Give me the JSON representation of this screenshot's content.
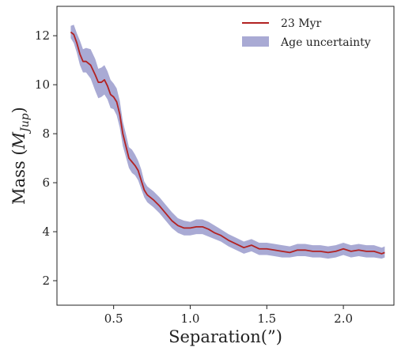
{
  "chart_data": {
    "type": "line",
    "xlabel": "Separation(”)",
    "ylabel_main": "Mass (",
    "ylabel_italic": "M",
    "ylabel_sub": "Jup",
    "ylabel_close": ")",
    "xlim": [
      0.13,
      2.33
    ],
    "ylim": [
      1.0,
      13.2
    ],
    "xticks": [
      0.5,
      1.0,
      1.5,
      2.0
    ],
    "xtick_labels": [
      "0.5",
      "1.0",
      "1.5",
      "2.0"
    ],
    "yticks": [
      2,
      4,
      6,
      8,
      10,
      12
    ],
    "ytick_labels": [
      "2",
      "4",
      "6",
      "8",
      "10",
      "12"
    ],
    "grid": false,
    "legend_position": "top-right",
    "legend": {
      "line_label": "23 Myr",
      "band_label": "Age uncertainty"
    },
    "colors": {
      "line": "#b22222",
      "band": "#9a9bcc"
    },
    "series": [
      {
        "name": "23 Myr",
        "x": [
          0.22,
          0.24,
          0.26,
          0.28,
          0.3,
          0.32,
          0.35,
          0.38,
          0.4,
          0.42,
          0.44,
          0.46,
          0.48,
          0.5,
          0.52,
          0.54,
          0.56,
          0.58,
          0.6,
          0.62,
          0.64,
          0.66,
          0.68,
          0.7,
          0.72,
          0.74,
          0.76,
          0.8,
          0.84,
          0.88,
          0.92,
          0.96,
          1.0,
          1.04,
          1.08,
          1.12,
          1.16,
          1.2,
          1.25,
          1.3,
          1.35,
          1.4,
          1.45,
          1.5,
          1.55,
          1.6,
          1.65,
          1.7,
          1.75,
          1.8,
          1.85,
          1.9,
          1.95,
          2.0,
          2.05,
          2.1,
          2.15,
          2.2,
          2.25,
          2.27
        ],
        "y": [
          12.15,
          12.05,
          11.7,
          11.25,
          10.95,
          10.95,
          10.8,
          10.4,
          10.1,
          10.1,
          10.2,
          9.95,
          9.6,
          9.5,
          9.3,
          8.8,
          8.0,
          7.5,
          7.0,
          6.85,
          6.7,
          6.5,
          6.1,
          5.7,
          5.5,
          5.4,
          5.3,
          5.05,
          4.75,
          4.45,
          4.25,
          4.15,
          4.15,
          4.2,
          4.2,
          4.1,
          3.95,
          3.85,
          3.65,
          3.5,
          3.35,
          3.45,
          3.3,
          3.3,
          3.25,
          3.2,
          3.15,
          3.25,
          3.25,
          3.2,
          3.2,
          3.15,
          3.2,
          3.3,
          3.2,
          3.25,
          3.2,
          3.2,
          3.1,
          3.15
        ]
      },
      {
        "name": "Age uncertainty",
        "x": [
          0.22,
          0.24,
          0.26,
          0.28,
          0.3,
          0.32,
          0.35,
          0.38,
          0.4,
          0.42,
          0.44,
          0.46,
          0.48,
          0.5,
          0.52,
          0.54,
          0.56,
          0.58,
          0.6,
          0.62,
          0.64,
          0.66,
          0.68,
          0.7,
          0.72,
          0.74,
          0.76,
          0.8,
          0.84,
          0.88,
          0.92,
          0.96,
          1.0,
          1.04,
          1.08,
          1.12,
          1.16,
          1.2,
          1.25,
          1.3,
          1.35,
          1.4,
          1.45,
          1.5,
          1.55,
          1.6,
          1.65,
          1.7,
          1.75,
          1.8,
          1.85,
          1.9,
          1.95,
          2.0,
          2.05,
          2.1,
          2.15,
          2.2,
          2.25,
          2.27
        ],
        "lower": [
          11.9,
          11.7,
          11.3,
          10.8,
          10.5,
          10.5,
          10.25,
          9.75,
          9.45,
          9.5,
          9.6,
          9.4,
          9.05,
          9.0,
          8.75,
          8.25,
          7.5,
          7.05,
          6.6,
          6.4,
          6.3,
          6.1,
          5.75,
          5.4,
          5.2,
          5.1,
          5.0,
          4.75,
          4.45,
          4.15,
          3.95,
          3.85,
          3.85,
          3.9,
          3.9,
          3.8,
          3.7,
          3.6,
          3.4,
          3.25,
          3.1,
          3.2,
          3.05,
          3.05,
          3.0,
          2.95,
          2.95,
          3.0,
          3.0,
          2.95,
          2.95,
          2.9,
          2.95,
          3.05,
          2.95,
          3.0,
          2.95,
          2.95,
          2.9,
          2.95
        ],
        "upper": [
          12.4,
          12.45,
          12.1,
          11.8,
          11.45,
          11.5,
          11.45,
          11.05,
          10.65,
          10.7,
          10.8,
          10.55,
          10.2,
          10.05,
          9.85,
          9.35,
          8.5,
          8.0,
          7.45,
          7.35,
          7.15,
          6.9,
          6.55,
          6.05,
          5.85,
          5.75,
          5.65,
          5.4,
          5.1,
          4.8,
          4.55,
          4.45,
          4.4,
          4.5,
          4.5,
          4.4,
          4.25,
          4.1,
          3.9,
          3.75,
          3.6,
          3.7,
          3.55,
          3.55,
          3.5,
          3.45,
          3.4,
          3.5,
          3.5,
          3.45,
          3.45,
          3.4,
          3.45,
          3.55,
          3.45,
          3.5,
          3.45,
          3.45,
          3.35,
          3.4
        ]
      }
    ]
  }
}
